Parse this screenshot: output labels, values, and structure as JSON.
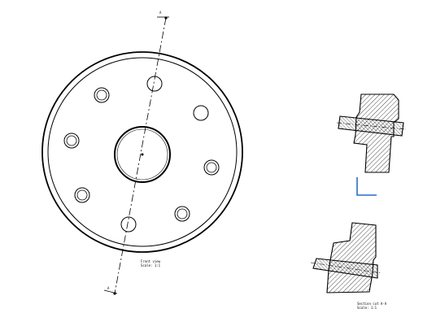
{
  "drawing": {
    "section_letter_top": "A",
    "section_letter_bottom": "A",
    "front_view": {
      "title": "Front view",
      "scale": "Scale: 1:1"
    },
    "section_view": {
      "title": "Section cut A-A",
      "scale": "Scale: 1:1"
    }
  },
  "colors": {
    "ink": "#000000",
    "axis_marker": "#1f6fd6"
  },
  "icons": [
    "axis-marker-icon"
  ]
}
